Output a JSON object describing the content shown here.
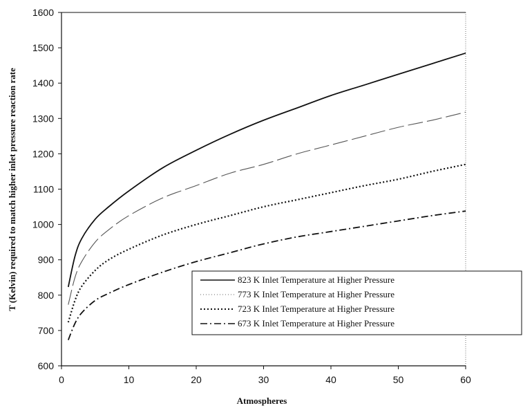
{
  "chart_data": {
    "type": "line",
    "title": "",
    "xlabel": "Atmospheres",
    "ylabel": "T (Kelvin) required to match higher inlet pressure reaction rate",
    "xlim": [
      0,
      60
    ],
    "ylim": [
      600,
      1600
    ],
    "xticks": [
      0,
      10,
      20,
      30,
      40,
      50,
      60
    ],
    "yticks": [
      600,
      700,
      800,
      900,
      1000,
      1100,
      1200,
      1300,
      1400,
      1500,
      1600
    ],
    "grid": false,
    "legend_position": "bottom-right",
    "x": [
      1,
      2,
      3,
      5,
      7,
      10,
      15,
      20,
      25,
      30,
      35,
      40,
      45,
      50,
      55,
      60
    ],
    "series": [
      {
        "name": "823 K Inlet Temperature at Higher Pressure",
        "style": "solid",
        "values": [
          823,
          910,
          960,
          1015,
          1050,
          1095,
          1160,
          1210,
          1255,
          1295,
          1330,
          1365,
          1395,
          1425,
          1455,
          1485
        ]
      },
      {
        "name": "773 K Inlet Temperature at Higher Pressure",
        "style": "long-dash",
        "values": [
          773,
          850,
          895,
          950,
          985,
          1025,
          1075,
          1110,
          1145,
          1170,
          1200,
          1225,
          1250,
          1275,
          1295,
          1318
        ]
      },
      {
        "name": "723 K Inlet Temperature at Higher Pressure",
        "style": "dotted",
        "values": [
          723,
          785,
          825,
          870,
          900,
          930,
          970,
          1000,
          1025,
          1050,
          1070,
          1090,
          1110,
          1128,
          1150,
          1170
        ]
      },
      {
        "name": "673 K Inlet Temperature at Higher Pressure",
        "style": "dash-dot",
        "values": [
          673,
          720,
          750,
          785,
          805,
          830,
          865,
          895,
          920,
          945,
          965,
          980,
          995,
          1010,
          1025,
          1038
        ]
      }
    ]
  }
}
